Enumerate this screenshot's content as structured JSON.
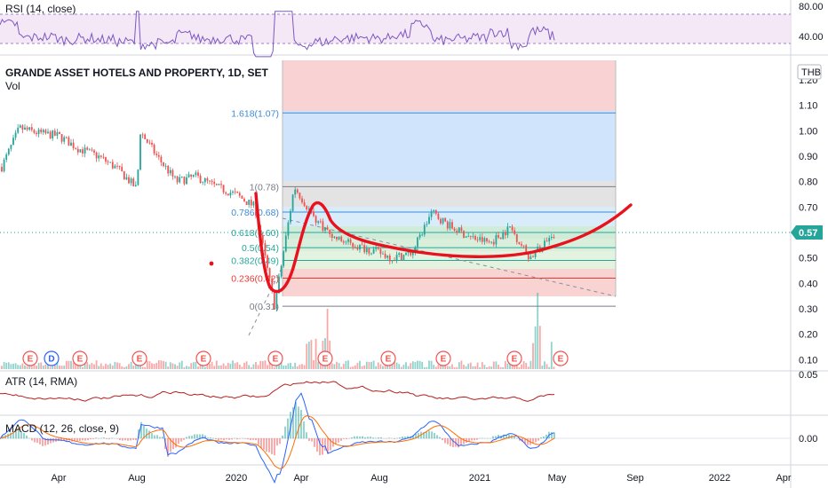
{
  "chart_data": {
    "type": "candlestick",
    "title": "GRANDE ASSET HOTELS AND PROPERTY, 1D, SET",
    "volume_label": "Vol",
    "currency": "THB",
    "last_price": "0.57",
    "price_axis": {
      "ylim": [
        0.05,
        1.27
      ],
      "ticks": [
        "1.20",
        "1.10",
        "1.00",
        "0.90",
        "0.80",
        "0.70",
        "0.60",
        "0.50",
        "0.40",
        "0.30",
        "0.20",
        "0.10"
      ]
    },
    "x_axis": {
      "ticks": [
        "Apr",
        "Aug",
        "2020",
        "Apr",
        "Aug",
        "2021",
        "May",
        "Sep",
        "2022",
        "Apr"
      ]
    },
    "price_keypoints": [
      {
        "x": "2019-01",
        "y": 0.84
      },
      {
        "x": "2019-02",
        "y": 1.01
      },
      {
        "x": "2019-03",
        "y": 0.99
      },
      {
        "x": "2019-04",
        "y": 0.98
      },
      {
        "x": "2019-05",
        "y": 0.93
      },
      {
        "x": "2019-06",
        "y": 0.9
      },
      {
        "x": "2019-07",
        "y": 0.85
      },
      {
        "x": "2019-08",
        "y": 0.77
      },
      {
        "x": "2019-08",
        "y": 1.0
      },
      {
        "x": "2019-09",
        "y": 0.9
      },
      {
        "x": "2019-10",
        "y": 0.8
      },
      {
        "x": "2019-11",
        "y": 0.82
      },
      {
        "x": "2019-12",
        "y": 0.78
      },
      {
        "x": "2020-01",
        "y": 0.75
      },
      {
        "x": "2020-02",
        "y": 0.7
      },
      {
        "x": "2020-03",
        "y": 0.31
      },
      {
        "x": "2020-04",
        "y": 0.78
      },
      {
        "x": "2020-05",
        "y": 0.66
      },
      {
        "x": "2020-06",
        "y": 0.58
      },
      {
        "x": "2020-07",
        "y": 0.55
      },
      {
        "x": "2020-08",
        "y": 0.53
      },
      {
        "x": "2020-09",
        "y": 0.5
      },
      {
        "x": "2020-10",
        "y": 0.52
      },
      {
        "x": "2020-11",
        "y": 0.68
      },
      {
        "x": "2020-12",
        "y": 0.62
      },
      {
        "x": "2021-01",
        "y": 0.58
      },
      {
        "x": "2021-02",
        "y": 0.56
      },
      {
        "x": "2021-03",
        "y": 0.62
      },
      {
        "x": "2021-04",
        "y": 0.5
      },
      {
        "x": "2021-05",
        "y": 0.57
      }
    ],
    "fibonacci": [
      {
        "label": "1.618(1.07)",
        "value": 1.07,
        "color": "#3d8bd4"
      },
      {
        "label": "1(0.78)",
        "value": 0.78,
        "color": "#787b86"
      },
      {
        "label": "0.786(0.68)",
        "value": 0.68,
        "color": "#3d8bd4"
      },
      {
        "label": "0.618(0.60)",
        "value": 0.6,
        "color": "#26a69a"
      },
      {
        "label": "0.5(0.54)",
        "value": 0.54,
        "color": "#26a69a"
      },
      {
        "label": "0.382(0.49)",
        "value": 0.49,
        "color": "#26a69a"
      },
      {
        "label": "0.236(0.42)",
        "value": 0.42,
        "color": "#e53935"
      },
      {
        "label": "0(0.31)",
        "value": 0.31,
        "color": "#787b86"
      }
    ],
    "earnings_markers": [
      "E",
      "D",
      "E",
      "E",
      "E",
      "E",
      "E",
      "E",
      "E",
      "E",
      "E"
    ],
    "indicators": {
      "rsi": {
        "title": "RSI (14, close)",
        "ticks": [
          "80.00",
          "40.00"
        ]
      },
      "atr": {
        "title": "ATR (14, RMA)",
        "ticks": [
          "0.05"
        ]
      },
      "macd": {
        "title": "MACD (12, 26, close, 9)",
        "ticks": [
          "0.00"
        ]
      }
    },
    "colors": {
      "up": "#26a69a",
      "down": "#ef5350",
      "rsi": "#7e57c2",
      "atr": "#b71c1c",
      "macd": "#2962ff",
      "signal": "#ff6d00",
      "drawing": "#e8121f",
      "last_price_bg": "#26a69a"
    }
  }
}
